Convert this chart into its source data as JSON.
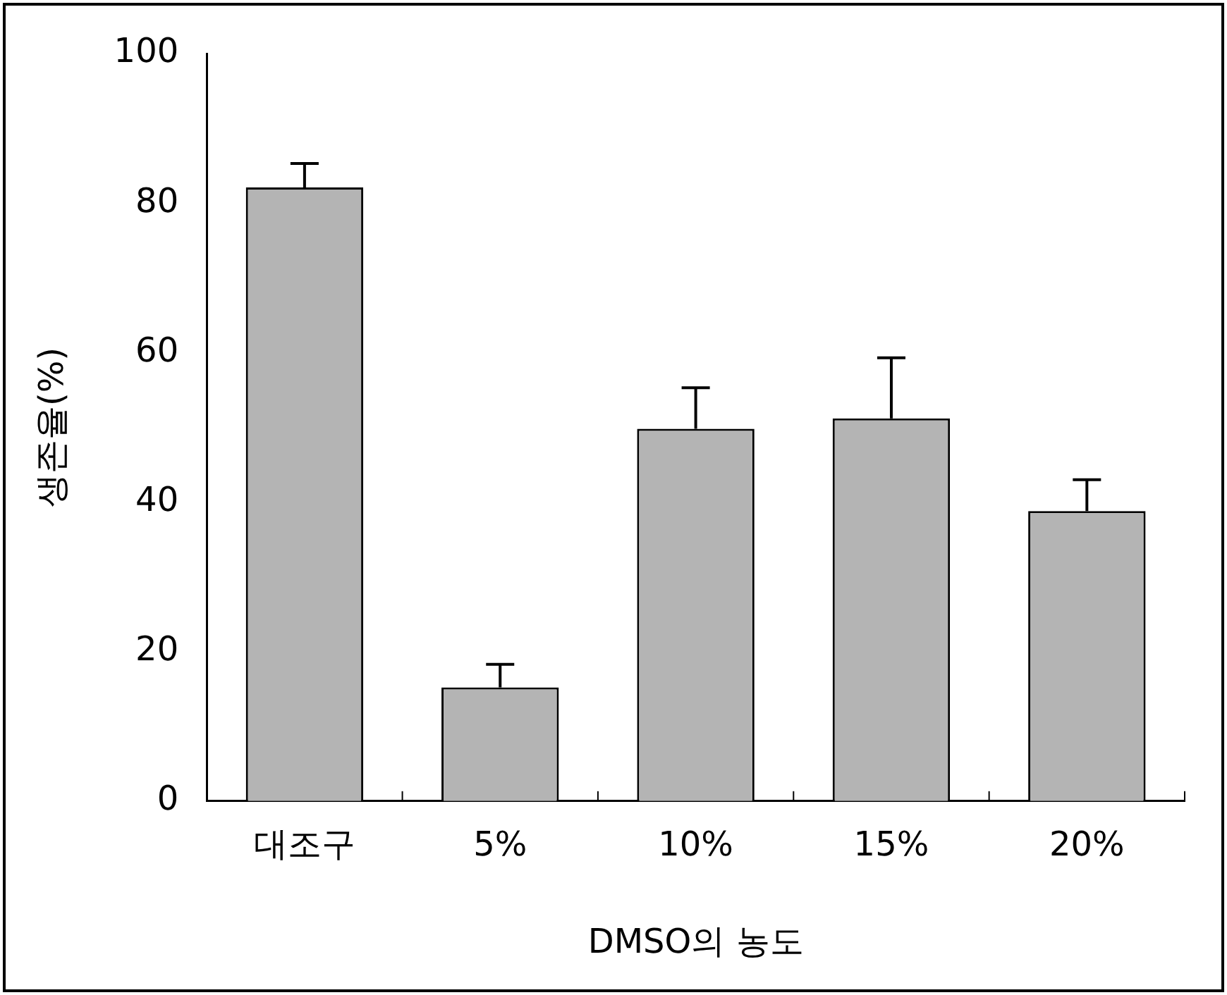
{
  "chart_data": {
    "type": "bar",
    "xlabel": "DMSO의 농도",
    "ylabel": "생존율(%)",
    "categories": [
      "대조구",
      "5%",
      "10%",
      "15%",
      "20%"
    ],
    "values": [
      82.1,
      15.2,
      49.8,
      51.2,
      38.8
    ],
    "errors": [
      [
        82.1,
        85.3
      ],
      [
        15.2,
        18.3
      ],
      [
        49.8,
        55.3
      ],
      [
        51.2,
        59.3
      ],
      [
        38.8,
        43.0
      ]
    ],
    "color": "#b4b4b4",
    "ylim": [
      0,
      100
    ],
    "yticks": [
      0,
      20,
      40,
      60,
      80,
      100
    ],
    "grid": false,
    "legend": false
  }
}
